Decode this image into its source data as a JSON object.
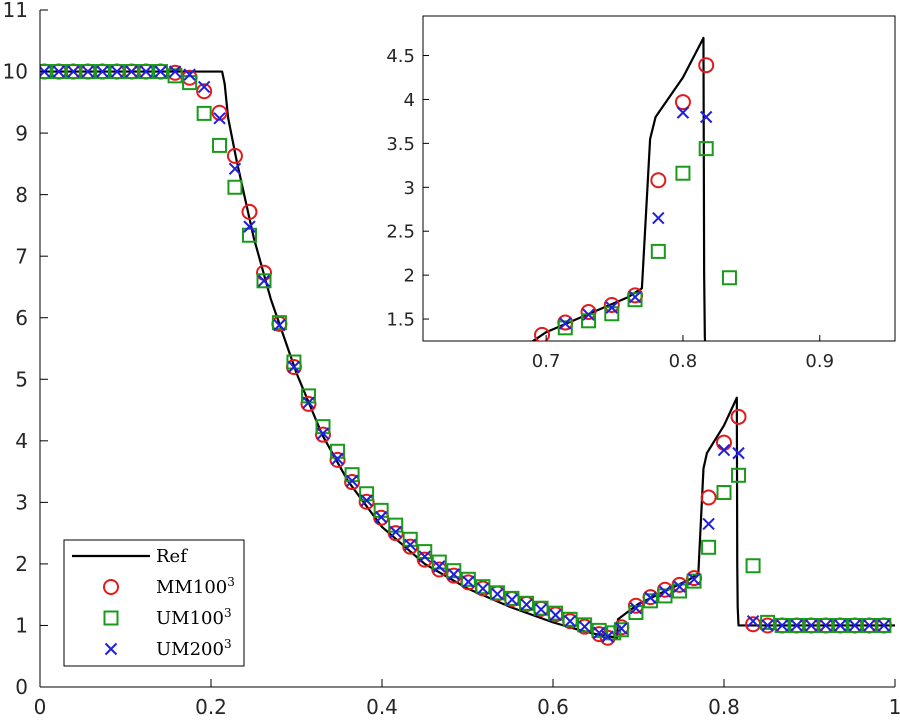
{
  "chart_data": [
    {
      "type": "line",
      "role": "main",
      "title": "",
      "xlabel": "",
      "ylabel": "",
      "xlim": [
        0,
        1
      ],
      "ylim": [
        0,
        11
      ],
      "x_ticks": [
        0,
        0.2,
        0.4,
        0.6,
        0.8,
        1
      ],
      "x_tick_labels": [
        "0",
        "0.2",
        "0.4",
        "0.6",
        "0.8",
        "1"
      ],
      "y_ticks": [
        0,
        1,
        2,
        3,
        4,
        5,
        6,
        7,
        8,
        9,
        10,
        11
      ],
      "y_tick_labels": [
        "0",
        "1",
        "2",
        "3",
        "4",
        "5",
        "6",
        "7",
        "8",
        "9",
        "10",
        "11"
      ],
      "legend": {
        "position": "bottom-left",
        "entries": [
          {
            "label": "Ref",
            "sup": "",
            "marker": "line",
            "color": "#000000"
          },
          {
            "label": "MM100",
            "sup": "3",
            "marker": "circle",
            "color": "#e31a1c"
          },
          {
            "label": "UM100",
            "sup": "3",
            "marker": "square",
            "color": "#1a9a1a"
          },
          {
            "label": "UM200",
            "sup": "3",
            "marker": "x",
            "color": "#1f1fe0"
          }
        ]
      },
      "series": [
        {
          "name": "Ref",
          "marker": "line",
          "color": "#000000",
          "x": [
            0,
            0.213,
            0.216,
            0.22,
            0.23,
            0.25,
            0.27,
            0.3,
            0.33,
            0.36,
            0.4,
            0.45,
            0.5,
            0.55,
            0.6,
            0.63,
            0.65,
            0.675,
            0.676,
            0.7,
            0.73,
            0.76,
            0.77,
            0.776,
            0.78,
            0.8,
            0.815,
            0.8155,
            0.816,
            0.817,
            1
          ],
          "y": [
            10,
            10,
            9.8,
            9.25,
            8.55,
            7.3,
            6.3,
            5.1,
            4.1,
            3.35,
            2.6,
            2.0,
            1.6,
            1.3,
            1.05,
            0.93,
            0.86,
            0.8,
            1.1,
            1.35,
            1.55,
            1.75,
            1.85,
            3.55,
            3.8,
            4.25,
            4.7,
            2.0,
            1.3,
            1.0,
            1.0
          ]
        },
        {
          "name": "MM100",
          "marker": "circle",
          "color": "#e31a1c",
          "x": [
            0.005,
            0.022,
            0.039,
            0.056,
            0.073,
            0.09,
            0.107,
            0.124,
            0.141,
            0.158,
            0.175,
            0.192,
            0.21,
            0.228,
            0.245,
            0.262,
            0.28,
            0.297,
            0.314,
            0.331,
            0.348,
            0.365,
            0.382,
            0.399,
            0.416,
            0.433,
            0.45,
            0.467,
            0.484,
            0.501,
            0.518,
            0.535,
            0.552,
            0.569,
            0.586,
            0.603,
            0.62,
            0.637,
            0.654,
            0.664,
            0.68,
            0.697,
            0.714,
            0.731,
            0.748,
            0.765,
            0.782,
            0.8,
            0.817,
            0.834,
            0.851,
            0.868,
            0.885,
            0.902,
            0.919,
            0.936,
            0.953,
            0.97,
            0.987
          ],
          "y": [
            10,
            10,
            10,
            10,
            10,
            10,
            10,
            10,
            10,
            9.98,
            9.9,
            9.68,
            9.33,
            8.63,
            7.72,
            6.73,
            5.9,
            5.2,
            4.6,
            4.1,
            3.69,
            3.33,
            3.01,
            2.75,
            2.5,
            2.28,
            2.07,
            1.91,
            1.81,
            1.7,
            1.6,
            1.52,
            1.43,
            1.35,
            1.27,
            1.18,
            1.07,
            0.98,
            0.86,
            0.8,
            0.97,
            1.32,
            1.46,
            1.58,
            1.66,
            1.77,
            3.08,
            3.97,
            4.39,
            1.02,
            1.0,
            1.0,
            1.0,
            1.0,
            1.0,
            1.0,
            1.0,
            1.0,
            1.0
          ]
        },
        {
          "name": "UM100",
          "marker": "square",
          "color": "#1a9a1a",
          "x": [
            0.005,
            0.022,
            0.039,
            0.056,
            0.073,
            0.09,
            0.107,
            0.124,
            0.141,
            0.158,
            0.175,
            0.192,
            0.21,
            0.228,
            0.245,
            0.262,
            0.28,
            0.297,
            0.314,
            0.331,
            0.348,
            0.365,
            0.382,
            0.399,
            0.416,
            0.433,
            0.45,
            0.467,
            0.484,
            0.501,
            0.518,
            0.535,
            0.552,
            0.569,
            0.586,
            0.603,
            0.62,
            0.637,
            0.654,
            0.671,
            0.68,
            0.697,
            0.714,
            0.731,
            0.748,
            0.765,
            0.782,
            0.8,
            0.817,
            0.834,
            0.851,
            0.868,
            0.885,
            0.902,
            0.919,
            0.936,
            0.953,
            0.97,
            0.987
          ],
          "y": [
            10,
            10,
            10,
            10,
            10,
            10,
            10,
            10,
            10,
            9.93,
            9.82,
            9.32,
            8.8,
            8.12,
            7.34,
            6.6,
            5.92,
            5.28,
            4.73,
            4.23,
            3.83,
            3.45,
            3.14,
            2.87,
            2.63,
            2.4,
            2.2,
            2.03,
            1.89,
            1.75,
            1.63,
            1.53,
            1.44,
            1.36,
            1.28,
            1.2,
            1.1,
            1.01,
            0.92,
            0.88,
            0.93,
            1.21,
            1.4,
            1.48,
            1.56,
            1.72,
            2.27,
            3.16,
            3.44,
            1.97,
            1.05,
            1.0,
            1.0,
            1.0,
            1.0,
            1.0,
            1.0,
            1.0,
            1.0
          ]
        },
        {
          "name": "UM200",
          "marker": "x",
          "color": "#1f1fe0",
          "x": [
            0.005,
            0.022,
            0.039,
            0.056,
            0.073,
            0.09,
            0.107,
            0.124,
            0.141,
            0.158,
            0.175,
            0.192,
            0.21,
            0.228,
            0.245,
            0.262,
            0.28,
            0.297,
            0.314,
            0.331,
            0.348,
            0.365,
            0.382,
            0.399,
            0.416,
            0.433,
            0.45,
            0.467,
            0.484,
            0.501,
            0.518,
            0.535,
            0.552,
            0.569,
            0.586,
            0.603,
            0.62,
            0.637,
            0.654,
            0.664,
            0.68,
            0.697,
            0.714,
            0.731,
            0.748,
            0.765,
            0.782,
            0.8,
            0.817,
            0.834,
            0.851,
            0.868,
            0.885,
            0.902,
            0.919,
            0.936,
            0.953,
            0.97,
            0.987
          ],
          "y": [
            10,
            10,
            10,
            10,
            10,
            10,
            10,
            10,
            10,
            10,
            9.95,
            9.75,
            9.24,
            8.42,
            7.48,
            6.6,
            5.88,
            5.2,
            4.62,
            4.12,
            3.71,
            3.35,
            3.03,
            2.76,
            2.52,
            2.31,
            2.12,
            1.96,
            1.83,
            1.71,
            1.6,
            1.51,
            1.42,
            1.34,
            1.26,
            1.17,
            1.07,
            0.98,
            0.88,
            0.82,
            0.95,
            1.28,
            1.45,
            1.55,
            1.63,
            1.75,
            2.65,
            3.85,
            3.8,
            1.07,
            1.0,
            1.0,
            1.0,
            1.0,
            1.0,
            1.0,
            1.0,
            1.0,
            1.0
          ]
        }
      ]
    },
    {
      "type": "line",
      "role": "inset",
      "title": "",
      "xlabel": "",
      "ylabel": "",
      "xlim": [
        0.61,
        0.955
      ],
      "ylim": [
        1.25,
        4.95
      ],
      "x_ticks": [
        0.7,
        0.8,
        0.9
      ],
      "x_tick_labels": [
        "0.7",
        "0.8",
        "0.9"
      ],
      "y_ticks": [
        1.5,
        2,
        2.5,
        3,
        3.5,
        4,
        4.5
      ],
      "y_tick_labels": [
        "1.5",
        "2",
        "2.5",
        "3",
        "3.5",
        "4",
        "4.5"
      ],
      "series": [
        {
          "name": "Ref",
          "marker": "line",
          "color": "#000000",
          "x": [
            0.61,
            0.675,
            0.676,
            0.7,
            0.73,
            0.76,
            0.77,
            0.776,
            0.78,
            0.8,
            0.815,
            0.8155,
            0.816,
            0.817,
            0.955
          ],
          "y": [
            1.0,
            0.8,
            1.1,
            1.35,
            1.55,
            1.75,
            1.85,
            3.55,
            3.8,
            4.25,
            4.7,
            2.0,
            1.3,
            1.0,
            1.0
          ]
        },
        {
          "name": "MM100",
          "marker": "circle",
          "color": "#e31a1c",
          "x": [
            0.697,
            0.714,
            0.731,
            0.748,
            0.765,
            0.782,
            0.8,
            0.817
          ],
          "y": [
            1.32,
            1.46,
            1.58,
            1.66,
            1.77,
            3.08,
            3.97,
            4.39
          ]
        },
        {
          "name": "UM100",
          "marker": "square",
          "color": "#1a9a1a",
          "x": [
            0.714,
            0.731,
            0.748,
            0.765,
            0.782,
            0.8,
            0.817,
            0.834
          ],
          "y": [
            1.4,
            1.48,
            1.56,
            1.72,
            2.27,
            3.16,
            3.44,
            1.97
          ]
        },
        {
          "name": "UM200",
          "marker": "x",
          "color": "#1f1fe0",
          "x": [
            0.714,
            0.731,
            0.748,
            0.765,
            0.782,
            0.8,
            0.817
          ],
          "y": [
            1.45,
            1.55,
            1.63,
            1.75,
            2.65,
            3.85,
            3.8
          ]
        }
      ]
    }
  ]
}
